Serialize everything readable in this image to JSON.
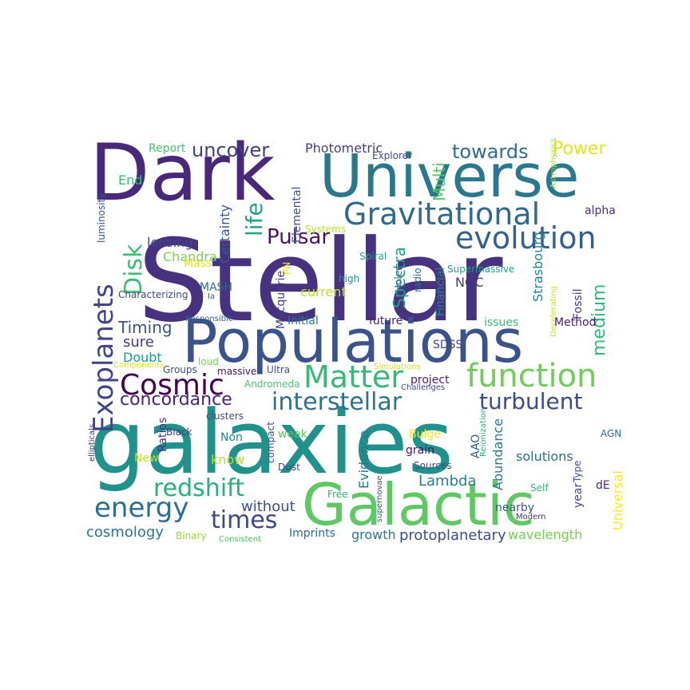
{
  "words": [
    {
      "text": "Stellar",
      "color": "#46327e"
    },
    {
      "text": "galaxies",
      "color": "#21918c"
    },
    {
      "text": "Dark",
      "color": "#482878"
    },
    {
      "text": "Universe",
      "color": "#2a788e"
    },
    {
      "text": "Populations",
      "color": "#3b528b"
    },
    {
      "text": "Galactic",
      "color": "#5ec962"
    },
    {
      "text": "Gravitational",
      "color": "#31688e"
    },
    {
      "text": "evolution",
      "color": "#355f8d"
    },
    {
      "text": "function",
      "color": "#6ece58"
    },
    {
      "text": "Matter",
      "color": "#38b977"
    },
    {
      "text": "Cosmic",
      "color": "#440154"
    },
    {
      "text": "turbulent",
      "color": "#3e4a89"
    },
    {
      "text": "interstellar",
      "color": "#2c728e"
    },
    {
      "text": "energy",
      "color": "#2d708e"
    },
    {
      "text": "redshift",
      "color": "#29af7f"
    },
    {
      "text": "times",
      "color": "#3f4788"
    },
    {
      "text": "Exoplanets",
      "color": "#414487"
    },
    {
      "text": "Disk",
      "color": "#3dbc74"
    },
    {
      "text": "Pulsar",
      "color": "#471365"
    },
    {
      "text": "life",
      "color": "#20a386"
    },
    {
      "text": "towards",
      "color": "#2f6c8e"
    },
    {
      "text": "uncover",
      "color": "#424086"
    },
    {
      "text": "Power",
      "color": "#e5e419"
    },
    {
      "text": "medium",
      "color": "#35b779"
    },
    {
      "text": "Spectra",
      "color": "#1fa188"
    },
    {
      "text": "concordance",
      "color": "#482475"
    },
    {
      "text": "Timing",
      "color": "#3a548c"
    },
    {
      "text": "sure",
      "color": "#443983"
    },
    {
      "text": "Doubt",
      "color": "#1f9a8a"
    },
    {
      "text": "Lambda",
      "color": "#277f8e"
    },
    {
      "text": "Universal",
      "color": "#fde725"
    },
    {
      "text": "without",
      "color": "#3e4c8a"
    },
    {
      "text": "cosmology",
      "color": "#2a768e"
    },
    {
      "text": "protoplanetary",
      "color": "#3d4e8a"
    },
    {
      "text": "wavelength",
      "color": "#75d054"
    },
    {
      "text": "growth",
      "color": "#2a778e"
    },
    {
      "text": "Imprints",
      "color": "#31678e"
    },
    {
      "text": "lensing",
      "color": "#414487"
    },
    {
      "text": "Certainty",
      "color": "#39558c"
    },
    {
      "text": "Elemental",
      "color": "#3c4f8a"
    },
    {
      "text": "Multi",
      "color": "#54c568"
    },
    {
      "text": "Photometric",
      "color": "#433e85"
    },
    {
      "text": "Explorer",
      "color": "#3e4989"
    },
    {
      "text": "luminosity",
      "color": "#3b518b"
    },
    {
      "text": "End",
      "color": "#3aba76"
    },
    {
      "text": "Report",
      "color": "#4ac16d"
    },
    {
      "text": "alpha",
      "color": "#472c7a"
    },
    {
      "text": "Astrophysics",
      "color": "#a0da39"
    },
    {
      "text": "NGC",
      "color": "#453781"
    },
    {
      "text": "Strasbourg",
      "color": "#25848e"
    },
    {
      "text": "Fossil",
      "color": "#46337e"
    },
    {
      "text": "Supermassive",
      "color": "#20a486"
    },
    {
      "text": "Financial",
      "color": "#23898e"
    },
    {
      "text": "radio",
      "color": "#2e6e8e"
    },
    {
      "text": "Holes",
      "color": "#2d718e"
    },
    {
      "text": "high",
      "color": "#1f968b"
    },
    {
      "text": "Spiral",
      "color": "#22a785"
    },
    {
      "text": "Systems",
      "color": "#b5de2b"
    },
    {
      "text": "PN",
      "color": "#f1e51d"
    },
    {
      "text": "Chandra",
      "color": "#7ad151"
    },
    {
      "text": "Mass",
      "color": "#e3e418"
    },
    {
      "text": "Macquarie",
      "color": "#433e85"
    },
    {
      "text": "current",
      "color": "#c2df23"
    },
    {
      "text": "MASH",
      "color": "#31668e"
    },
    {
      "text": "Characterizing",
      "color": "#3e4989"
    },
    {
      "text": "Ia",
      "color": "#39568c"
    },
    {
      "text": "Responsible",
      "color": "#35608d"
    },
    {
      "text": "Initial",
      "color": "#2a768e"
    },
    {
      "text": "future",
      "color": "#482475"
    },
    {
      "text": "issues",
      "color": "#3aba76"
    },
    {
      "text": "Decelerating",
      "color": "#d0e11c"
    },
    {
      "text": "Method",
      "color": "#481f70"
    },
    {
      "text": "SDSS",
      "color": "#3f4889"
    },
    {
      "text": "Components",
      "color": "#e7e419"
    },
    {
      "text": "Groups",
      "color": "#3e4a89"
    },
    {
      "text": "loud",
      "color": "#73d056"
    },
    {
      "text": "massive",
      "color": "#471063"
    },
    {
      "text": "Ultra",
      "color": "#3b528b"
    },
    {
      "text": "Simulations",
      "color": "#d8e219"
    },
    {
      "text": "project",
      "color": "#482071"
    },
    {
      "text": "Challenges",
      "color": "#3e4c8a"
    },
    {
      "text": "Andromeda",
      "color": "#4ec36b"
    },
    {
      "text": "ellipticals",
      "color": "#46327e"
    },
    {
      "text": "Ratios",
      "color": "#46307e"
    },
    {
      "text": "clusters",
      "color": "#3f4788"
    },
    {
      "text": "Black",
      "color": "#453882"
    },
    {
      "text": "Non",
      "color": "#24868e"
    },
    {
      "text": "weak",
      "color": "#5ec962"
    },
    {
      "text": "compact",
      "color": "#3c4f8a"
    },
    {
      "text": "Dust",
      "color": "#3f4788"
    },
    {
      "text": "Bulge",
      "color": "#f4e61e"
    },
    {
      "text": "AAO",
      "color": "#38588c"
    },
    {
      "text": "Reionization",
      "color": "#29af7f"
    },
    {
      "text": "AGN",
      "color": "#2f6b8e"
    },
    {
      "text": "New",
      "color": "#bddf26"
    },
    {
      "text": "know",
      "color": "#b8de29"
    },
    {
      "text": "grain",
      "color": "#471365"
    },
    {
      "text": "Sources",
      "color": "#3e4a89"
    },
    {
      "text": "solutions",
      "color": "#2c728e"
    },
    {
      "text": "Evidence",
      "color": "#2a768e"
    },
    {
      "text": "Abundance",
      "color": "#2a788e"
    },
    {
      "text": "supernovae",
      "color": "#3b528b"
    },
    {
      "text": "Free",
      "color": "#2db27d"
    },
    {
      "text": "Self",
      "color": "#35b779"
    },
    {
      "text": "year",
      "color": "#3f4788"
    },
    {
      "text": "Type",
      "color": "#3e4c8a"
    },
    {
      "text": "dE",
      "color": "#482475"
    },
    {
      "text": "nearby",
      "color": "#3b528b"
    },
    {
      "text": "Modern",
      "color": "#46327e"
    },
    {
      "text": "Binary",
      "color": "#9bd93c"
    },
    {
      "text": "Consistent",
      "color": "#4ac16d"
    }
  ]
}
